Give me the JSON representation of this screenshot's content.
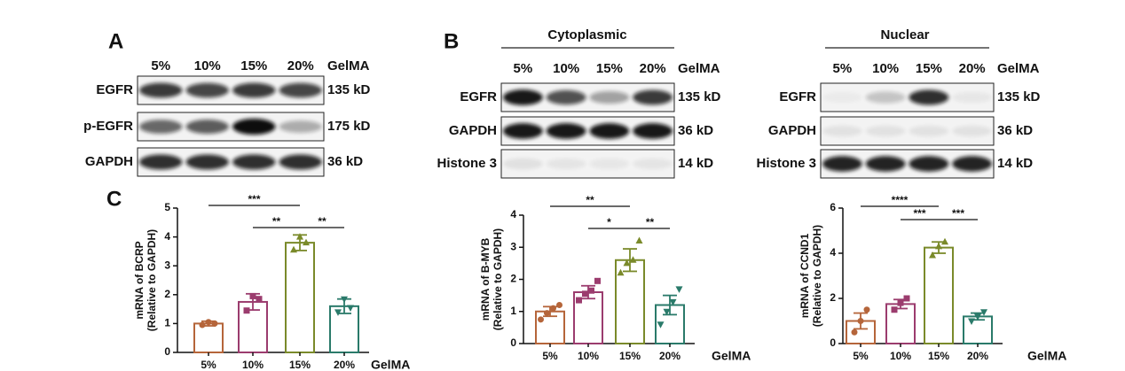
{
  "panel_a": {
    "label": "A",
    "columns": [
      "5%",
      "10%",
      "15%",
      "20%",
      "GelMA"
    ],
    "rows": [
      {
        "name": "EGFR",
        "size": "135 kD"
      },
      {
        "name": "p-EGFR",
        "size": "175 kD"
      },
      {
        "name": "GAPDH",
        "size": "36 kD"
      }
    ]
  },
  "panel_b": {
    "label": "B",
    "groups": [
      {
        "title": "Cytoplasmic",
        "columns": [
          "5%",
          "10%",
          "15%",
          "20%",
          "GelMA"
        ],
        "rows": [
          {
            "name": "EGFR",
            "size": "135 kD"
          },
          {
            "name": "GAPDH",
            "size": "36 kD"
          },
          {
            "name": "Histone 3",
            "size": "14 kD"
          }
        ]
      },
      {
        "title": "Nuclear",
        "columns": [
          "5%",
          "10%",
          "15%",
          "20%",
          "GelMA"
        ],
        "rows": [
          {
            "name": "EGFR",
            "size": "135 kD"
          },
          {
            "name": "GAPDH",
            "size": "36 kD"
          },
          {
            "name": "Histone 3",
            "size": "14 kD"
          }
        ]
      }
    ]
  },
  "panel_c_label": "C",
  "chart_data": [
    {
      "type": "bar",
      "y_label": "mRNA of BCRP",
      "y_label_sub": "(Relative to GAPDH)",
      "x_label": "GelMA",
      "categories": [
        "5%",
        "10%",
        "15%",
        "20%"
      ],
      "values": [
        1.0,
        1.75,
        3.8,
        1.6
      ],
      "errors": [
        0.08,
        0.28,
        0.27,
        0.25
      ],
      "points": [
        [
          0.95,
          1.05,
          1.0
        ],
        [
          1.45,
          1.95,
          1.85
        ],
        [
          3.55,
          4.0,
          3.8
        ],
        [
          1.4,
          1.85,
          1.55
        ]
      ],
      "colors": [
        "#b5653a",
        "#9b3c6e",
        "#7a8a2a",
        "#2a7a6a"
      ],
      "ylim": [
        0,
        5
      ],
      "yticks": [
        0,
        1,
        2,
        3,
        4,
        5
      ],
      "significance": [
        {
          "label": "***",
          "between": [
            "5%",
            "15%"
          ]
        },
        {
          "label": "**",
          "between": [
            "10%",
            "15%"
          ]
        },
        {
          "label": "**",
          "between": [
            "15%",
            "20%"
          ]
        }
      ]
    },
    {
      "type": "bar",
      "y_label": "mRNA of B-MYB",
      "y_label_sub": "(Relative to GAPDH)",
      "x_label": "GelMA",
      "categories": [
        "5%",
        "10%",
        "15%",
        "20%"
      ],
      "values": [
        1.0,
        1.6,
        2.6,
        1.2
      ],
      "errors": [
        0.15,
        0.2,
        0.35,
        0.3
      ],
      "points": [
        [
          0.75,
          0.95,
          1.1,
          1.2
        ],
        [
          1.35,
          1.55,
          1.65,
          1.95
        ],
        [
          2.2,
          2.5,
          2.6,
          3.2
        ],
        [
          0.6,
          1.0,
          1.3,
          1.7
        ]
      ],
      "colors": [
        "#b5653a",
        "#9b3c6e",
        "#7a8a2a",
        "#2a7a6a"
      ],
      "ylim": [
        0,
        4
      ],
      "yticks": [
        0,
        1,
        2,
        3,
        4
      ],
      "significance": [
        {
          "label": "**",
          "between": [
            "5%",
            "15%"
          ]
        },
        {
          "label": "*",
          "between": [
            "10%",
            "15%"
          ]
        },
        {
          "label": "**",
          "between": [
            "15%",
            "20%"
          ]
        }
      ]
    },
    {
      "type": "bar",
      "y_label": "mRNA of CCND1",
      "y_label_sub": "(Relative to GAPDH)",
      "x_label": "GelMA",
      "categories": [
        "5%",
        "10%",
        "15%",
        "20%"
      ],
      "values": [
        1.0,
        1.75,
        4.25,
        1.2
      ],
      "errors": [
        0.35,
        0.2,
        0.25,
        0.15
      ],
      "points": [
        [
          0.5,
          1.0,
          1.5
        ],
        [
          1.5,
          1.8,
          2.0
        ],
        [
          3.9,
          4.3,
          4.5
        ],
        [
          1.0,
          1.2,
          1.4
        ]
      ],
      "colors": [
        "#b5653a",
        "#9b3c6e",
        "#7a8a2a",
        "#2a7a6a"
      ],
      "ylim": [
        0,
        6
      ],
      "yticks": [
        0,
        2,
        4,
        6
      ],
      "significance": [
        {
          "label": "****",
          "between": [
            "5%",
            "15%"
          ]
        },
        {
          "label": "***",
          "between": [
            "10%",
            "15%"
          ]
        },
        {
          "label": "***",
          "between": [
            "15%",
            "20%"
          ]
        }
      ]
    }
  ]
}
